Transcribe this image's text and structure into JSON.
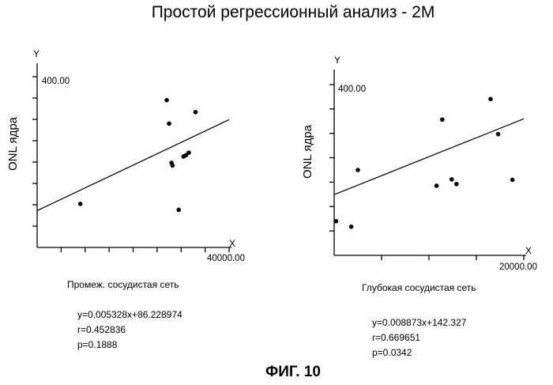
{
  "page_title": "Простой регрессионный анализ - 2М",
  "figure_label": "ФИГ. 10",
  "chart_data": [
    {
      "type": "scatter",
      "title": "",
      "xlabel": "X",
      "ylabel": "ONL ядра",
      "y_axis_letter": "Y",
      "ymax_label": "400.00",
      "xmax_label": "40000.00",
      "xlim": [
        0,
        40000
      ],
      "ylim": [
        0,
        400
      ],
      "caption": "Промеж. сосудистая сеть",
      "x": [
        9000,
        27000,
        27500,
        28000,
        28200,
        30500,
        31000,
        31600,
        29500,
        33000
      ],
      "y": [
        102,
        345,
        290,
        198,
        192,
        213,
        216,
        222,
        88,
        317
      ],
      "regression": {
        "slope": 0.005328,
        "intercept": 86.228974
      },
      "stats": {
        "equation": "y=0.005328x+86.228974",
        "r": "r=0.452836",
        "p": "p=0.1888"
      }
    },
    {
      "type": "scatter",
      "title": "",
      "xlabel": "X",
      "ylabel": "ONL ядра",
      "y_axis_letter": "Y",
      "ymax_label": "400.00",
      "xmax_label": "20000.00",
      "xlim": [
        0,
        20000
      ],
      "ylim": [
        0,
        400
      ],
      "caption": "Глубокая сосудистая сеть",
      "x": [
        200,
        1800,
        2500,
        10800,
        11400,
        12400,
        12900,
        16500,
        17300,
        18800
      ],
      "y": [
        80,
        67,
        200,
        163,
        318,
        178,
        167,
        366,
        284,
        177
      ],
      "regression": {
        "slope": 0.008873,
        "intercept": 142.327
      },
      "stats": {
        "equation": "y=0.008873x+142.327",
        "r": "r=0.669651",
        "p": "p=0.0342"
      }
    }
  ]
}
